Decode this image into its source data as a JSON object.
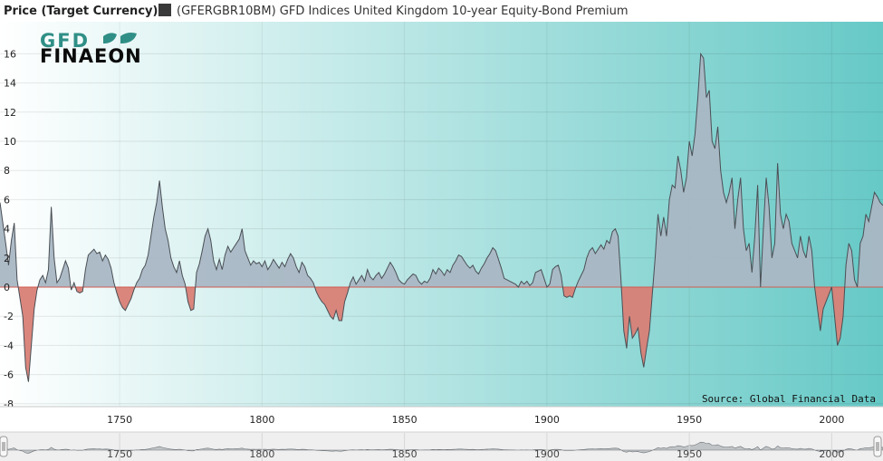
{
  "header": {
    "title": "Price (Target Currency)",
    "legend_label": "(GFERGBR10BM) GFD Indices United Kingdom 10-year Equity-Bond Premium",
    "legend_swatch_color": "#3a3a3a"
  },
  "logo": {
    "line1": "GFD",
    "line2": "FINAEON"
  },
  "source": "Source: Global Financial Data",
  "colors": {
    "positive_fill": "#a9b7c4",
    "negative_fill": "#d98076",
    "line": "#4a4f55",
    "bg_left": "#ffffff",
    "bg_right": "#66c9c6"
  },
  "icons": {
    "nav_left": "nav-left-handle-icon",
    "nav_right": "nav-right-handle-icon"
  },
  "chart_data": {
    "type": "area",
    "title": "Price (Target Currency)",
    "series_name": "(GFERGBR10BM) GFD Indices United Kingdom 10-year Equity-Bond Premium",
    "xlim": [
      1708,
      2018
    ],
    "ylim": [
      -8.2,
      18.2
    ],
    "y_ticks": [
      -8,
      -6,
      -4,
      -2,
      0,
      2,
      4,
      6,
      8,
      10,
      12,
      14,
      16
    ],
    "x_ticks": [
      1750,
      1800,
      1850,
      1900,
      1950,
      2000
    ],
    "navigator_ticks": [
      1750,
      1800,
      1850,
      1900,
      1950,
      2000
    ],
    "grid": true,
    "points": [
      [
        1708,
        5.8
      ],
      [
        1710,
        3.0
      ],
      [
        1711,
        1.5
      ],
      [
        1712,
        3.2
      ],
      [
        1713,
        4.4
      ],
      [
        1714,
        0.5
      ],
      [
        1716,
        -2.0
      ],
      [
        1717,
        -5.5
      ],
      [
        1718,
        -6.5
      ],
      [
        1719,
        -4.0
      ],
      [
        1720,
        -1.5
      ],
      [
        1721,
        -0.2
      ],
      [
        1722,
        0.5
      ],
      [
        1723,
        0.8
      ],
      [
        1724,
        0.3
      ],
      [
        1725,
        1.2
      ],
      [
        1726,
        5.5
      ],
      [
        1727,
        2.0
      ],
      [
        1728,
        0.3
      ],
      [
        1729,
        0.6
      ],
      [
        1730,
        1.2
      ],
      [
        1731,
        1.8
      ],
      [
        1732,
        1.3
      ],
      [
        1733,
        -0.2
      ],
      [
        1734,
        0.3
      ],
      [
        1735,
        -0.3
      ],
      [
        1736,
        -0.4
      ],
      [
        1737,
        -0.3
      ],
      [
        1738,
        1.2
      ],
      [
        1739,
        2.2
      ],
      [
        1740,
        2.4
      ],
      [
        1741,
        2.6
      ],
      [
        1742,
        2.3
      ],
      [
        1743,
        2.4
      ],
      [
        1744,
        1.8
      ],
      [
        1745,
        2.2
      ],
      [
        1746,
        1.9
      ],
      [
        1747,
        1.3
      ],
      [
        1748,
        0.3
      ],
      [
        1749,
        -0.4
      ],
      [
        1750,
        -1.0
      ],
      [
        1751,
        -1.4
      ],
      [
        1752,
        -1.6
      ],
      [
        1753,
        -1.2
      ],
      [
        1754,
        -0.8
      ],
      [
        1755,
        -0.2
      ],
      [
        1756,
        0.3
      ],
      [
        1757,
        0.6
      ],
      [
        1758,
        1.2
      ],
      [
        1759,
        1.5
      ],
      [
        1760,
        2.2
      ],
      [
        1761,
        3.5
      ],
      [
        1762,
        4.8
      ],
      [
        1763,
        5.8
      ],
      [
        1764,
        7.3
      ],
      [
        1765,
        5.5
      ],
      [
        1766,
        4.0
      ],
      [
        1767,
        3.2
      ],
      [
        1768,
        2.0
      ],
      [
        1769,
        1.4
      ],
      [
        1770,
        1.0
      ],
      [
        1771,
        1.8
      ],
      [
        1772,
        0.8
      ],
      [
        1773,
        0.2
      ],
      [
        1774,
        -1.0
      ],
      [
        1775,
        -1.6
      ],
      [
        1776,
        -1.5
      ],
      [
        1777,
        1.0
      ],
      [
        1778,
        1.6
      ],
      [
        1779,
        2.5
      ],
      [
        1780,
        3.5
      ],
      [
        1781,
        4.0
      ],
      [
        1782,
        3.2
      ],
      [
        1783,
        1.8
      ],
      [
        1784,
        1.2
      ],
      [
        1785,
        1.9
      ],
      [
        1786,
        1.2
      ],
      [
        1787,
        2.2
      ],
      [
        1788,
        2.8
      ],
      [
        1789,
        2.4
      ],
      [
        1790,
        2.7
      ],
      [
        1791,
        3.0
      ],
      [
        1792,
        3.3
      ],
      [
        1793,
        4.0
      ],
      [
        1794,
        2.5
      ],
      [
        1795,
        2.0
      ],
      [
        1796,
        1.5
      ],
      [
        1797,
        1.8
      ],
      [
        1798,
        1.6
      ],
      [
        1799,
        1.7
      ],
      [
        1800,
        1.4
      ],
      [
        1801,
        1.8
      ],
      [
        1802,
        1.2
      ],
      [
        1803,
        1.5
      ],
      [
        1804,
        1.9
      ],
      [
        1805,
        1.6
      ],
      [
        1806,
        1.3
      ],
      [
        1807,
        1.7
      ],
      [
        1808,
        1.4
      ],
      [
        1809,
        1.9
      ],
      [
        1810,
        2.3
      ],
      [
        1811,
        2.0
      ],
      [
        1812,
        1.4
      ],
      [
        1813,
        1.0
      ],
      [
        1814,
        1.7
      ],
      [
        1815,
        1.4
      ],
      [
        1816,
        0.8
      ],
      [
        1817,
        0.6
      ],
      [
        1818,
        0.3
      ],
      [
        1819,
        -0.3
      ],
      [
        1820,
        -0.7
      ],
      [
        1821,
        -1.0
      ],
      [
        1822,
        -1.2
      ],
      [
        1823,
        -1.6
      ],
      [
        1824,
        -2.0
      ],
      [
        1825,
        -2.2
      ],
      [
        1826,
        -1.6
      ],
      [
        1827,
        -2.3
      ],
      [
        1828,
        -2.3
      ],
      [
        1829,
        -1.0
      ],
      [
        1830,
        -0.4
      ],
      [
        1831,
        0.3
      ],
      [
        1832,
        0.7
      ],
      [
        1833,
        0.2
      ],
      [
        1834,
        0.5
      ],
      [
        1835,
        0.8
      ],
      [
        1836,
        0.4
      ],
      [
        1837,
        1.2
      ],
      [
        1838,
        0.7
      ],
      [
        1839,
        0.5
      ],
      [
        1840,
        0.8
      ],
      [
        1841,
        1.0
      ],
      [
        1842,
        0.6
      ],
      [
        1843,
        0.9
      ],
      [
        1844,
        1.3
      ],
      [
        1845,
        1.7
      ],
      [
        1846,
        1.4
      ],
      [
        1847,
        1.0
      ],
      [
        1848,
        0.5
      ],
      [
        1849,
        0.3
      ],
      [
        1850,
        0.2
      ],
      [
        1851,
        0.5
      ],
      [
        1852,
        0.7
      ],
      [
        1853,
        0.9
      ],
      [
        1854,
        0.8
      ],
      [
        1855,
        0.4
      ],
      [
        1856,
        0.2
      ],
      [
        1857,
        0.4
      ],
      [
        1858,
        0.3
      ],
      [
        1859,
        0.6
      ],
      [
        1860,
        1.2
      ],
      [
        1861,
        0.9
      ],
      [
        1862,
        1.3
      ],
      [
        1863,
        1.1
      ],
      [
        1864,
        0.8
      ],
      [
        1865,
        1.2
      ],
      [
        1866,
        1.0
      ],
      [
        1867,
        1.5
      ],
      [
        1868,
        1.8
      ],
      [
        1869,
        2.2
      ],
      [
        1870,
        2.1
      ],
      [
        1871,
        1.8
      ],
      [
        1872,
        1.5
      ],
      [
        1873,
        1.3
      ],
      [
        1874,
        1.5
      ],
      [
        1875,
        1.1
      ],
      [
        1876,
        0.9
      ],
      [
        1877,
        1.3
      ],
      [
        1878,
        1.6
      ],
      [
        1879,
        2.0
      ],
      [
        1880,
        2.3
      ],
      [
        1881,
        2.7
      ],
      [
        1882,
        2.5
      ],
      [
        1883,
        1.9
      ],
      [
        1884,
        1.3
      ],
      [
        1885,
        0.6
      ],
      [
        1886,
        0.5
      ],
      [
        1887,
        0.4
      ],
      [
        1888,
        0.3
      ],
      [
        1889,
        0.2
      ],
      [
        1890,
        0.0
      ],
      [
        1891,
        0.4
      ],
      [
        1892,
        0.2
      ],
      [
        1893,
        0.4
      ],
      [
        1894,
        0.1
      ],
      [
        1895,
        0.3
      ],
      [
        1896,
        1.0
      ],
      [
        1897,
        1.1
      ],
      [
        1898,
        1.2
      ],
      [
        1899,
        0.6
      ],
      [
        1900,
        0.0
      ],
      [
        1901,
        0.2
      ],
      [
        1902,
        1.2
      ],
      [
        1903,
        1.4
      ],
      [
        1904,
        1.5
      ],
      [
        1905,
        0.8
      ],
      [
        1906,
        -0.6
      ],
      [
        1907,
        -0.7
      ],
      [
        1908,
        -0.6
      ],
      [
        1909,
        -0.7
      ],
      [
        1910,
        -0.1
      ],
      [
        1911,
        0.4
      ],
      [
        1912,
        0.8
      ],
      [
        1913,
        1.2
      ],
      [
        1914,
        2.0
      ],
      [
        1915,
        2.5
      ],
      [
        1916,
        2.7
      ],
      [
        1917,
        2.3
      ],
      [
        1918,
        2.6
      ],
      [
        1919,
        2.9
      ],
      [
        1920,
        2.6
      ],
      [
        1921,
        3.2
      ],
      [
        1922,
        3.0
      ],
      [
        1923,
        3.8
      ],
      [
        1924,
        4.0
      ],
      [
        1925,
        3.5
      ],
      [
        1926,
        0.5
      ],
      [
        1927,
        -3.0
      ],
      [
        1928,
        -4.2
      ],
      [
        1929,
        -2.0
      ],
      [
        1930,
        -3.5
      ],
      [
        1931,
        -3.2
      ],
      [
        1932,
        -2.8
      ],
      [
        1933,
        -4.5
      ],
      [
        1934,
        -5.5
      ],
      [
        1935,
        -4.2
      ],
      [
        1936,
        -3.0
      ],
      [
        1937,
        -0.5
      ],
      [
        1938,
        2.0
      ],
      [
        1939,
        5.0
      ],
      [
        1940,
        3.5
      ],
      [
        1941,
        4.8
      ],
      [
        1942,
        3.5
      ],
      [
        1943,
        6.0
      ],
      [
        1944,
        7.0
      ],
      [
        1945,
        6.8
      ],
      [
        1946,
        9.0
      ],
      [
        1947,
        8.0
      ],
      [
        1948,
        6.5
      ],
      [
        1949,
        7.5
      ],
      [
        1950,
        10.0
      ],
      [
        1951,
        9.0
      ],
      [
        1952,
        10.5
      ],
      [
        1953,
        13.0
      ],
      [
        1954,
        16.0
      ],
      [
        1955,
        15.7
      ],
      [
        1956,
        13.0
      ],
      [
        1957,
        13.5
      ],
      [
        1958,
        10.0
      ],
      [
        1959,
        9.5
      ],
      [
        1960,
        11.0
      ],
      [
        1961,
        8.0
      ],
      [
        1962,
        6.5
      ],
      [
        1963,
        5.8
      ],
      [
        1964,
        6.5
      ],
      [
        1965,
        7.5
      ],
      [
        1966,
        4.0
      ],
      [
        1967,
        6.0
      ],
      [
        1968,
        7.5
      ],
      [
        1969,
        4.0
      ],
      [
        1970,
        2.5
      ],
      [
        1971,
        3.0
      ],
      [
        1972,
        1.0
      ],
      [
        1973,
        3.5
      ],
      [
        1974,
        7.0
      ],
      [
        1975,
        0.0
      ],
      [
        1976,
        4.0
      ],
      [
        1977,
        7.5
      ],
      [
        1978,
        5.5
      ],
      [
        1979,
        2.0
      ],
      [
        1980,
        3.0
      ],
      [
        1981,
        8.5
      ],
      [
        1982,
        5.0
      ],
      [
        1983,
        4.0
      ],
      [
        1984,
        5.0
      ],
      [
        1985,
        4.5
      ],
      [
        1986,
        3.0
      ],
      [
        1987,
        2.5
      ],
      [
        1988,
        2.0
      ],
      [
        1989,
        3.5
      ],
      [
        1990,
        2.5
      ],
      [
        1991,
        2.0
      ],
      [
        1992,
        3.5
      ],
      [
        1993,
        2.5
      ],
      [
        1994,
        0.0
      ],
      [
        1995,
        -1.5
      ],
      [
        1996,
        -3.0
      ],
      [
        1997,
        -1.5
      ],
      [
        1998,
        -1.0
      ],
      [
        1999,
        -0.5
      ],
      [
        2000,
        0.0
      ],
      [
        2001,
        -2.0
      ],
      [
        2002,
        -4.0
      ],
      [
        2003,
        -3.5
      ],
      [
        2004,
        -2.0
      ],
      [
        2005,
        1.5
      ],
      [
        2006,
        3.0
      ],
      [
        2007,
        2.5
      ],
      [
        2008,
        0.5
      ],
      [
        2009,
        0.0
      ],
      [
        2010,
        3.0
      ],
      [
        2011,
        3.5
      ],
      [
        2012,
        5.0
      ],
      [
        2013,
        4.5
      ],
      [
        2014,
        5.5
      ],
      [
        2015,
        6.5
      ],
      [
        2016,
        6.2
      ],
      [
        2017,
        5.8
      ],
      [
        2018,
        5.6
      ]
    ]
  }
}
